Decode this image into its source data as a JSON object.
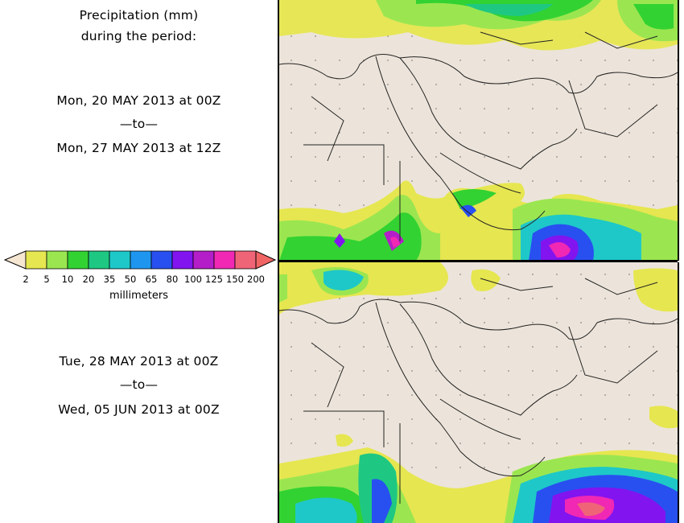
{
  "header": {
    "line1": "Precipitation (mm)",
    "line2": "during the period:"
  },
  "period1": {
    "start": "Mon, 20 MAY 2013 at 00Z",
    "sep": "—to—",
    "end": "Mon, 27 MAY 2013 at 12Z"
  },
  "period2": {
    "start": "Tue, 28 MAY 2013 at 00Z",
    "sep": "—to—",
    "end": "Wed, 05 JUN 2013 at 00Z"
  },
  "legend": {
    "units": "millimeters",
    "labels": [
      "2",
      "5",
      "10",
      "20",
      "35",
      "50",
      "65",
      "80",
      "100",
      "125",
      "150",
      "200"
    ],
    "colors": [
      "#e6e650",
      "#9be650",
      "#32d232",
      "#1ec882",
      "#1ec8c8",
      "#1e96f0",
      "#2850f0",
      "#8214f0",
      "#b41ec8",
      "#f028b4",
      "#f06478",
      "#f06464"
    ],
    "arrow_left_color": "#f5e6d2",
    "arrow_right_color": "#f06464"
  },
  "map": {
    "land_color": "#ece4da"
  }
}
